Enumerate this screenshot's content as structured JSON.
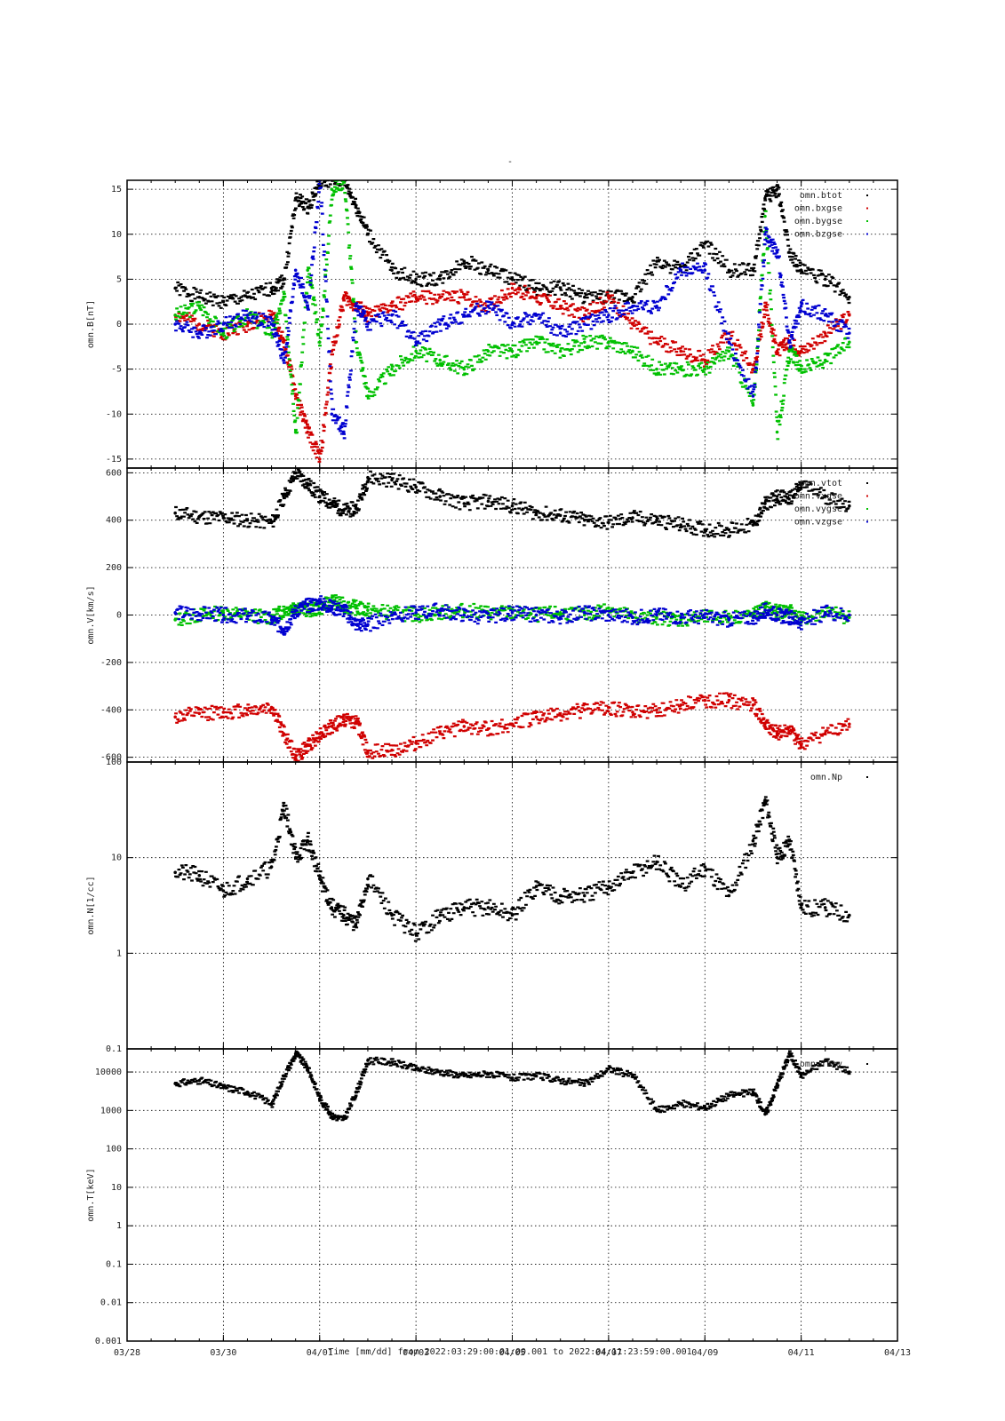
{
  "figure": {
    "title": "-",
    "xlabel": "Time [mm/dd]  from 2022:03:29:00:01:00.001  to  2022:04:11:23:59:00.001"
  },
  "chart_data": [
    {
      "type": "scatter",
      "ylabel": "omn.B[nT]",
      "yscale": "linear",
      "ylim": [
        -16,
        16
      ],
      "yticks": [
        -15,
        -10,
        -5,
        0,
        5,
        10,
        15
      ],
      "xlim": [
        "03/28",
        "04/13"
      ],
      "xticks": [
        "03/28",
        "03/30",
        "04/01",
        "04/03",
        "04/05",
        "04/07",
        "04/09",
        "04/11",
        "04/13"
      ],
      "grid": true,
      "legend_position": "top-right",
      "x": [
        "03/29",
        "03/29 12h",
        "03/30",
        "03/30 12h",
        "03/31",
        "03/31 06h",
        "03/31 12h",
        "03/31 18h",
        "04/01",
        "04/01 06h",
        "04/01 12h",
        "04/01 18h",
        "04/02",
        "04/02 12h",
        "04/03",
        "04/03 12h",
        "04/04",
        "04/04 12h",
        "04/05",
        "04/05 12h",
        "04/06",
        "04/06 12h",
        "04/07",
        "04/07 12h",
        "04/08",
        "04/08 12h",
        "04/09",
        "04/09 12h",
        "04/10",
        "04/10 06h",
        "04/10 12h",
        "04/10 18h",
        "04/11",
        "04/11 12h",
        "04/12"
      ],
      "series": [
        {
          "name": "omn.btot",
          "color": "#000000",
          "values": [
            4,
            3,
            2.5,
            3,
            4,
            5,
            14,
            13,
            16,
            16,
            16,
            13,
            10,
            6,
            5,
            5,
            7,
            6,
            5,
            4,
            4,
            3,
            3,
            3,
            7,
            6,
            9,
            6,
            6,
            14,
            15,
            8,
            6,
            5,
            3
          ]
        },
        {
          "name": "omn.bxgse",
          "color": "#d00000",
          "values": [
            1,
            0,
            -1,
            0,
            1,
            -2,
            -8,
            -12,
            -15,
            -3,
            3,
            2,
            1,
            2,
            3,
            3,
            3,
            2,
            4,
            3,
            2,
            1,
            3,
            0,
            -2,
            -3,
            -4,
            -1,
            -5,
            2,
            -3,
            -2,
            -3,
            -1,
            1
          ]
        },
        {
          "name": "omn.bygse",
          "color": "#00c000",
          "values": [
            1,
            2,
            -1,
            1,
            -1,
            3,
            -12,
            6,
            -2,
            15,
            16,
            -2,
            -8,
            -5,
            -3,
            -4,
            -5,
            -3,
            -3,
            -2,
            -3,
            -2,
            -2,
            -3,
            -5,
            -5,
            -5,
            -3,
            -9,
            12,
            -12,
            -3,
            -5,
            -4,
            -2
          ]
        },
        {
          "name": "omn.bzgse",
          "color": "#0000d0",
          "values": [
            0,
            -1,
            0,
            1,
            0,
            -4,
            6,
            2,
            16,
            -10,
            -12,
            2,
            0,
            1,
            -2,
            0,
            1,
            2,
            0,
            1,
            -1,
            0,
            1,
            2,
            2,
            6,
            6,
            -2,
            -8,
            10,
            8,
            -2,
            2,
            1,
            -1
          ]
        }
      ]
    },
    {
      "type": "scatter",
      "ylabel": "omn.V[km/s]",
      "yscale": "linear",
      "ylim": [
        -620,
        620
      ],
      "yticks": [
        -600,
        -400,
        -200,
        0,
        200,
        400,
        600
      ],
      "xlim": [
        "03/28",
        "04/13"
      ],
      "xticks": [
        "03/28",
        "03/30",
        "04/01",
        "04/03",
        "04/05",
        "04/07",
        "04/09",
        "04/11",
        "04/13"
      ],
      "grid": true,
      "legend_position": "top-right",
      "x": [
        "03/29",
        "03/29 12h",
        "03/30",
        "03/30 12h",
        "03/31",
        "03/31 06h",
        "03/31 12h",
        "03/31 18h",
        "04/01",
        "04/01 06h",
        "04/01 12h",
        "04/01 18h",
        "04/02",
        "04/02 12h",
        "04/03",
        "04/03 12h",
        "04/04",
        "04/04 12h",
        "04/05",
        "04/05 12h",
        "04/06",
        "04/06 12h",
        "04/07",
        "04/07 12h",
        "04/08",
        "04/08 12h",
        "04/09",
        "04/09 12h",
        "04/10",
        "04/10 06h",
        "04/10 12h",
        "04/10 18h",
        "04/11",
        "04/11 12h",
        "04/12"
      ],
      "series": [
        {
          "name": "omn.vtot",
          "color": "#000000",
          "values": [
            430,
            415,
            410,
            400,
            390,
            500,
            600,
            550,
            500,
            470,
            440,
            450,
            580,
            570,
            540,
            500,
            470,
            480,
            460,
            430,
            420,
            400,
            390,
            410,
            400,
            380,
            360,
            360,
            380,
            470,
            500,
            490,
            550,
            500,
            460
          ]
        },
        {
          "name": "omn.vxgse",
          "color": "#d00000",
          "values": [
            -430,
            -415,
            -410,
            -400,
            -390,
            -500,
            -600,
            -550,
            -500,
            -470,
            -440,
            -450,
            -580,
            -570,
            -540,
            -500,
            -470,
            -480,
            -460,
            -430,
            -420,
            -400,
            -390,
            -410,
            -400,
            -380,
            -360,
            -360,
            -380,
            -470,
            -500,
            -490,
            -550,
            -500,
            -460
          ]
        },
        {
          "name": "omn.vygse",
          "color": "#00c000",
          "values": [
            -20,
            0,
            10,
            0,
            -10,
            20,
            40,
            20,
            30,
            60,
            40,
            30,
            20,
            10,
            0,
            10,
            20,
            10,
            10,
            0,
            10,
            0,
            30,
            -10,
            -10,
            -20,
            -10,
            -10,
            0,
            30,
            10,
            20,
            -20,
            10,
            -10
          ]
        },
        {
          "name": "omn.vzgse",
          "color": "#0000d0",
          "values": [
            10,
            5,
            0,
            -5,
            -20,
            -60,
            20,
            40,
            50,
            30,
            20,
            -40,
            -40,
            0,
            10,
            20,
            0,
            -10,
            10,
            0,
            -10,
            10,
            0,
            -10,
            0,
            -10,
            -10,
            -20,
            -10,
            20,
            0,
            -10,
            -30,
            10,
            0
          ]
        }
      ]
    },
    {
      "type": "scatter",
      "ylabel": "omn.N[1/cc]",
      "yscale": "log",
      "ylim": [
        0.1,
        100
      ],
      "yticks": [
        0.1,
        1,
        10,
        100
      ],
      "ytick_labels": [
        "0.1",
        "1",
        "10",
        "100"
      ],
      "xlim": [
        "03/28",
        "04/13"
      ],
      "xticks": [
        "03/28",
        "03/30",
        "04/01",
        "04/03",
        "04/05",
        "04/07",
        "04/09",
        "04/11",
        "04/13"
      ],
      "grid": true,
      "legend_position": "top-right",
      "x": [
        "03/29",
        "03/29 12h",
        "03/30",
        "03/30 12h",
        "03/31",
        "03/31 06h",
        "03/31 12h",
        "03/31 18h",
        "04/01",
        "04/01 06h",
        "04/01 12h",
        "04/01 18h",
        "04/02",
        "04/02 12h",
        "04/03",
        "04/03 12h",
        "04/04",
        "04/04 12h",
        "04/05",
        "04/05 12h",
        "04/06",
        "04/06 12h",
        "04/07",
        "04/07 12h",
        "04/08",
        "04/08 12h",
        "04/09",
        "04/09 12h",
        "04/10",
        "04/10 06h",
        "04/10 12h",
        "04/10 18h",
        "04/11",
        "04/11 12h",
        "04/12"
      ],
      "series": [
        {
          "name": "omn.Np",
          "color": "#000000",
          "values": [
            7,
            6.5,
            4.5,
            6,
            8,
            35,
            10,
            15,
            6,
            3,
            2.5,
            2,
            6,
            2.5,
            1.6,
            2.5,
            3,
            3,
            2.5,
            5,
            4,
            4,
            5,
            7,
            9,
            5,
            8,
            4,
            15,
            40,
            10,
            15,
            3,
            3,
            2.5
          ]
        }
      ]
    },
    {
      "type": "scatter",
      "ylabel": "omn.T[keV]",
      "yscale": "log",
      "ylim": [
        0.001,
        40000
      ],
      "yticks": [
        0.001,
        0.01,
        0.1,
        1,
        10,
        100,
        1000,
        10000
      ],
      "ytick_labels": [
        "0.001",
        "0.01",
        "0.1",
        "1",
        "10",
        "100",
        "1000",
        "10000"
      ],
      "xlim": [
        "03/28",
        "04/13"
      ],
      "xticks": [
        "03/28",
        "03/30",
        "04/01",
        "04/03",
        "04/05",
        "04/07",
        "04/09",
        "04/11",
        "04/13"
      ],
      "grid": true,
      "legend_position": "top-right",
      "x": [
        "03/29",
        "03/29 12h",
        "03/30",
        "03/30 12h",
        "03/31",
        "03/31 06h",
        "03/31 12h",
        "03/31 18h",
        "04/01",
        "04/01 06h",
        "04/01 12h",
        "04/01 18h",
        "04/02",
        "04/02 12h",
        "04/03",
        "04/03 12h",
        "04/04",
        "04/04 12h",
        "04/05",
        "04/05 12h",
        "04/06",
        "04/06 12h",
        "04/07",
        "04/07 12h",
        "04/08",
        "04/08 12h",
        "04/09",
        "04/09 12h",
        "04/10",
        "04/10 06h",
        "04/10 12h",
        "04/10 18h",
        "04/11",
        "04/11 12h",
        "04/12"
      ],
      "series": [
        {
          "name": "omn.Tkev",
          "color": "#000000",
          "values": [
            5000,
            6000,
            4000,
            3000,
            1500,
            8000,
            30000,
            12000,
            2000,
            700,
            600,
            3000,
            20000,
            18000,
            12000,
            10000,
            8000,
            9000,
            7000,
            8000,
            6000,
            5000,
            12000,
            8000,
            1000,
            1500,
            1200,
            2500,
            3000,
            800,
            5000,
            30000,
            8000,
            20000,
            10000
          ]
        }
      ]
    }
  ]
}
